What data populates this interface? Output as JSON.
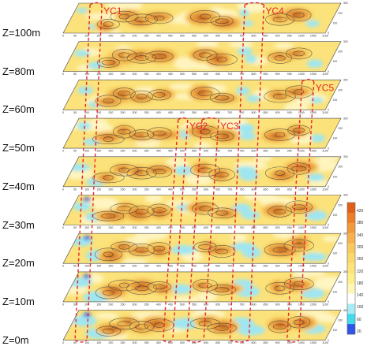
{
  "layers": [
    {
      "label": "Z=100m",
      "depth_m": 100
    },
    {
      "label": "Z=80m",
      "depth_m": 80
    },
    {
      "label": "Z=60m",
      "depth_m": 60
    },
    {
      "label": "Z=50m",
      "depth_m": 50
    },
    {
      "label": "Z=40m",
      "depth_m": 40
    },
    {
      "label": "Z=30m",
      "depth_m": 30
    },
    {
      "label": "Z=20m",
      "depth_m": 20
    },
    {
      "label": "Z=10m",
      "depth_m": 10
    },
    {
      "label": "Z=0m",
      "depth_m": 0
    }
  ],
  "x_axis_ticks": [
    "0",
    "50",
    "100",
    "150",
    "200",
    "250",
    "300",
    "350",
    "400",
    "450",
    "500",
    "550",
    "600",
    "650",
    "700",
    "750",
    "800",
    "850",
    "900",
    "950",
    "1000",
    "1050",
    "1100"
  ],
  "y_axis_ticks": [
    "0",
    "100",
    "200",
    "300"
  ],
  "zones": [
    {
      "label": "YC1",
      "x_start": 50,
      "x_end": 100,
      "top_layer": 0
    },
    {
      "label": "YC2",
      "x_start": 420,
      "x_end": 460,
      "top_layer": 3
    },
    {
      "label": "YC3",
      "x_start": 520,
      "x_end": 590,
      "top_layer": 3
    },
    {
      "label": "YC4",
      "x_start": 700,
      "x_end": 780,
      "top_layer": 0
    },
    {
      "label": "YC5",
      "x_start": 940,
      "x_end": 990,
      "top_layer": 2
    }
  ],
  "colorbar": {
    "ticks": [
      "420",
      "380",
      "340",
      "300",
      "260",
      "220",
      "180",
      "140",
      "100",
      "60",
      "20"
    ],
    "colors": [
      "#e0601a",
      "#ec7e26",
      "#f29a3a",
      "#f6b24e",
      "#f9c85f",
      "#fbd86c",
      "#fce47a",
      "#fdef8a",
      "#fff7b8",
      "#ffffff",
      "#a7ecf4",
      "#40d9ee",
      "#2f54e8"
    ]
  },
  "colors": {
    "zone_outline": "#e8262a",
    "zone_text": "#e8262a",
    "contour": "#333333",
    "low_fill": "#9fe6f2",
    "mid_fill": "#fbe27a",
    "high_fill": "#e89a3c"
  }
}
